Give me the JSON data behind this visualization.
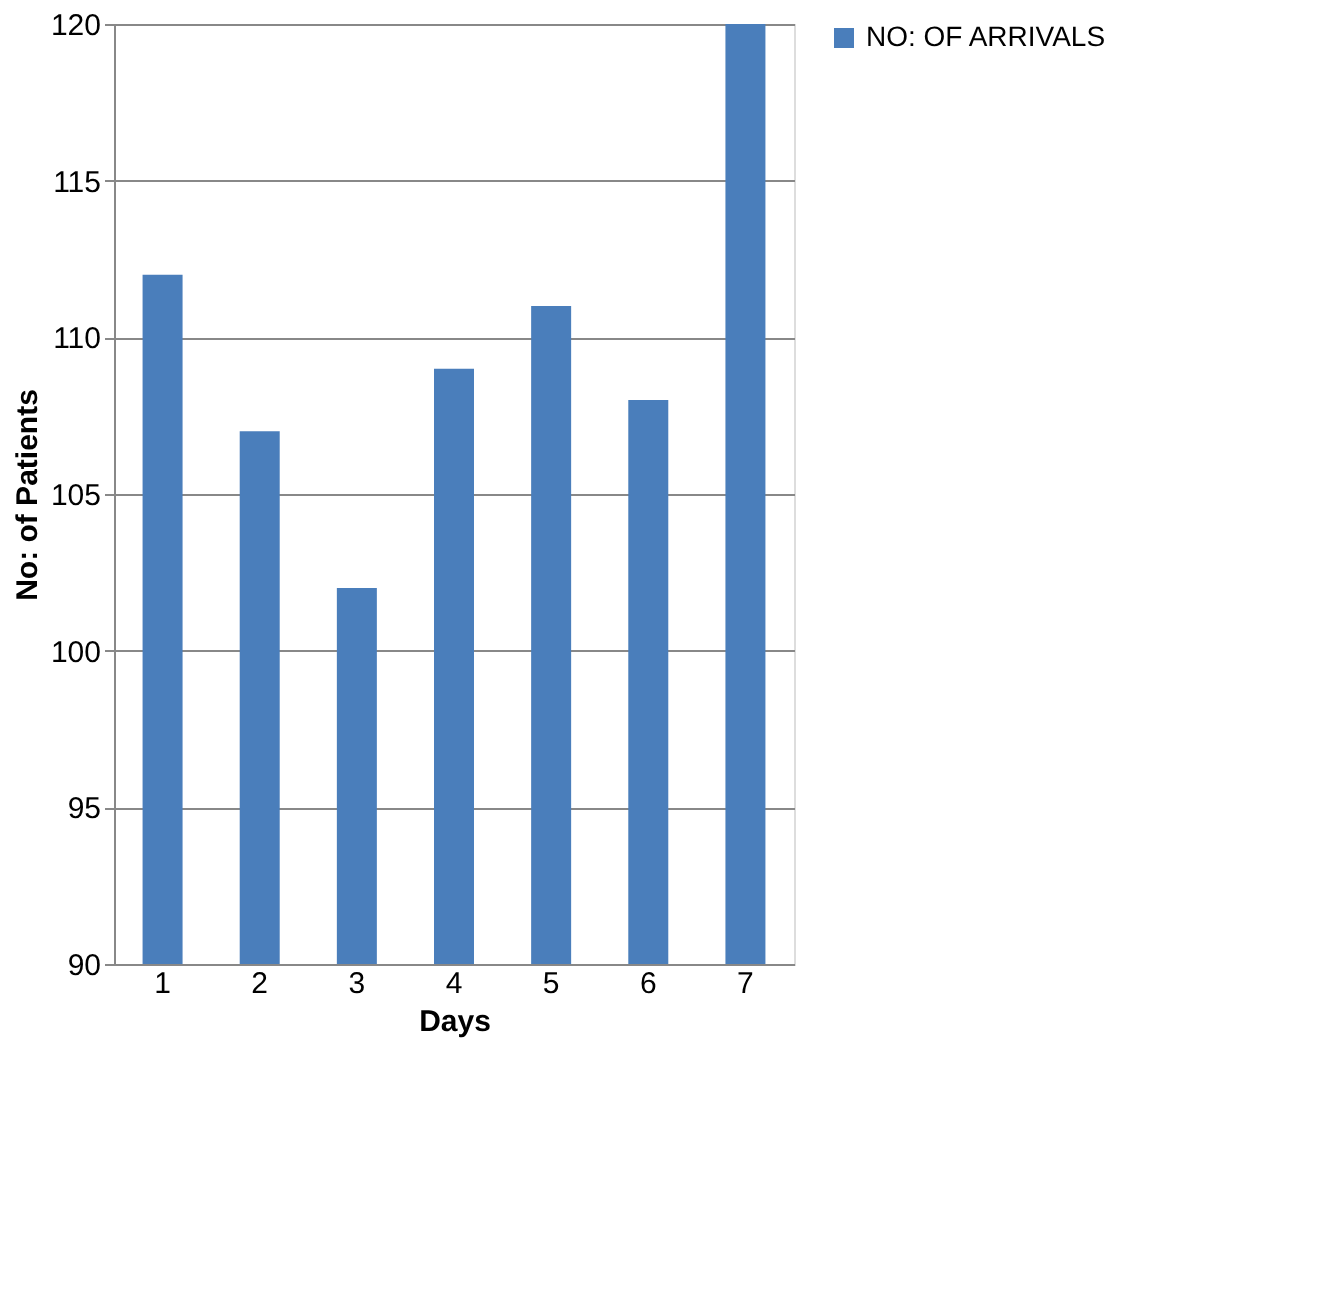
{
  "chart_data": {
    "type": "bar",
    "xlabel": "Days",
    "ylabel": "No: of Patients",
    "categories": [
      "1",
      "2",
      "3",
      "4",
      "5",
      "6",
      "7"
    ],
    "series": [
      {
        "name": "NO: OF ARRIVALS",
        "color": "#4a7ebb",
        "values": [
          112,
          107,
          102,
          109,
          111,
          108,
          120
        ]
      }
    ],
    "ylim": [
      90,
      120
    ],
    "yticks": [
      90,
      95,
      100,
      105,
      110,
      115,
      120
    ],
    "grid": "y",
    "legend": "right"
  }
}
